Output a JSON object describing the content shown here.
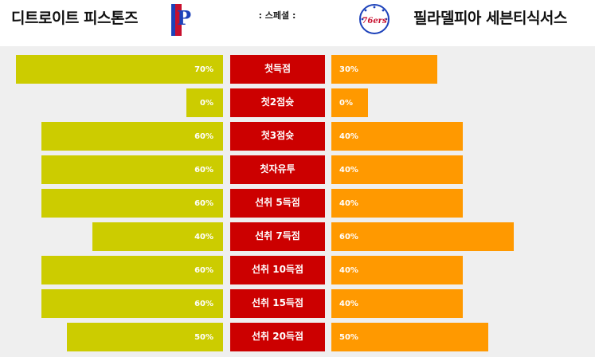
{
  "header": {
    "left_team": "디트로이트 피스톤즈",
    "right_team": "필라델피아 세븐티식서스",
    "special_label": ": 스페셜 :",
    "left_logo_text": "P",
    "right_logo_text": "76ers"
  },
  "colors": {
    "left_bar": "#cccc00",
    "right_bar": "#ff9900",
    "stat_label": "#cc0000"
  },
  "rows": [
    {
      "label": "첫득점",
      "left_pct_text": "70%",
      "right_pct_text": "30%",
      "left_value": 70,
      "right_value": 30
    },
    {
      "label": "첫2점슛",
      "left_pct_text": "0%",
      "right_pct_text": "0%",
      "left_value": 0,
      "right_value": 0
    },
    {
      "label": "첫3점슛",
      "left_pct_text": "60%",
      "right_pct_text": "40%",
      "left_value": 60,
      "right_value": 40
    },
    {
      "label": "첫자유투",
      "left_pct_text": "60%",
      "right_pct_text": "40%",
      "left_value": 60,
      "right_value": 40
    },
    {
      "label": "선취 5득점",
      "left_pct_text": "60%",
      "right_pct_text": "40%",
      "left_value": 60,
      "right_value": 40
    },
    {
      "label": "선취 7득점",
      "left_pct_text": "40%",
      "right_pct_text": "60%",
      "left_value": 40,
      "right_value": 60
    },
    {
      "label": "선취 10득점",
      "left_pct_text": "60%",
      "right_pct_text": "40%",
      "left_value": 60,
      "right_value": 40
    },
    {
      "label": "선취 15득점",
      "left_pct_text": "60%",
      "right_pct_text": "40%",
      "left_value": 60,
      "right_value": 40
    },
    {
      "label": "선취 20득점",
      "left_pct_text": "50%",
      "right_pct_text": "50%",
      "left_value": 50,
      "right_value": 50
    }
  ]
}
